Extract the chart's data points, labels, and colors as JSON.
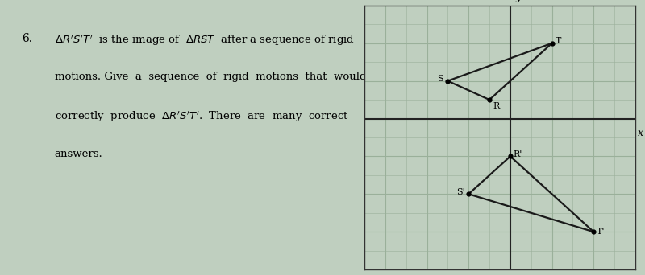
{
  "R": [
    -1,
    1
  ],
  "S": [
    -3,
    2
  ],
  "T": [
    2,
    4
  ],
  "Rp": [
    0,
    -2
  ],
  "Sp": [
    -2,
    -4
  ],
  "Tp": [
    4,
    -6
  ],
  "xlim": [
    -7,
    6
  ],
  "ylim": [
    -8,
    6
  ],
  "grid_minor_color": "#9ab09a",
  "grid_major_color": "#555555",
  "bg_color": "#bfcfbf",
  "bg_color_left": "#bfcfbf",
  "axis_color": "#222222",
  "triangle_color": "#1a1a1a",
  "label_fontsize": 8,
  "border_color": "#333333"
}
